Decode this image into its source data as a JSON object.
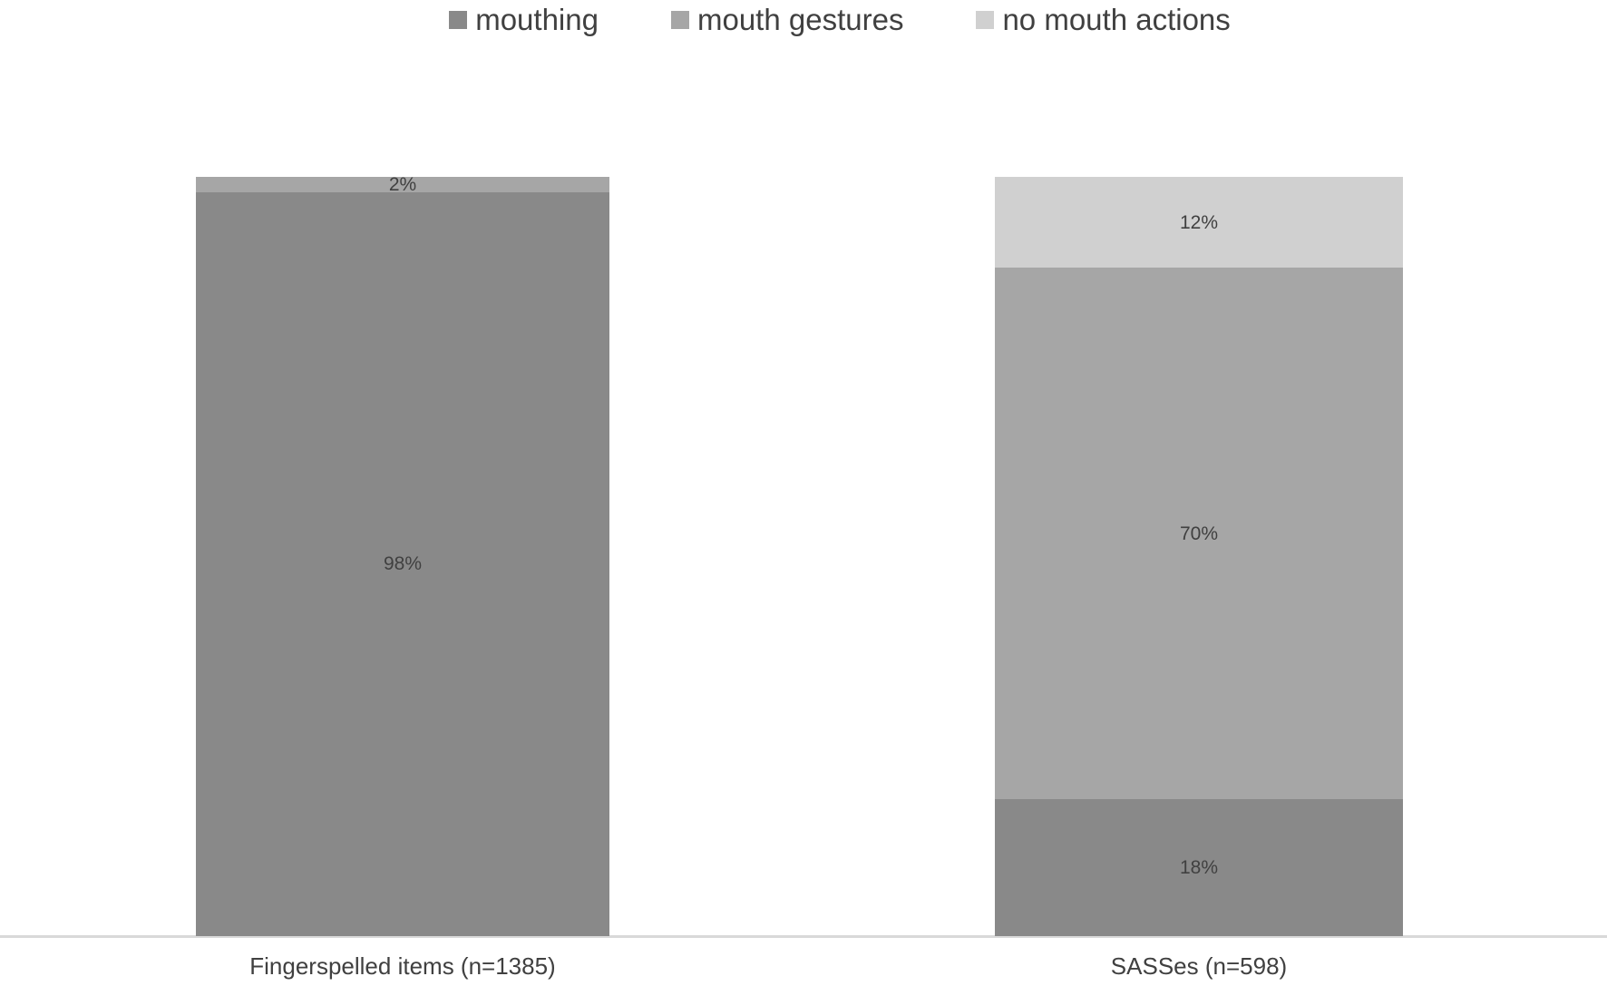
{
  "figure": {
    "background": "#ffffff",
    "axis_line_color": "#d9d9d9",
    "text_color": "#404040"
  },
  "legend": {
    "position": "top",
    "items": [
      {
        "label": "mouthing",
        "color": "#898989",
        "marker": "square"
      },
      {
        "label": "mouth gestures",
        "color": "#a6a6a6",
        "marker": "square"
      },
      {
        "label": "no mouth actions",
        "color": "#d0d0d0",
        "marker": "square"
      }
    ]
  },
  "chart_data": {
    "type": "bar",
    "variant": "100%-stacked-column",
    "categories": [
      "Fingerspelled items (n=1385)",
      "SASSes (n=598)"
    ],
    "series": [
      {
        "name": "mouthing",
        "color": "#898989",
        "values": [
          98,
          18
        ],
        "labels": [
          "98%",
          "18%"
        ]
      },
      {
        "name": "mouth gestures",
        "color": "#a6a6a6",
        "values": [
          2,
          70
        ],
        "labels": [
          "2%",
          "70%"
        ]
      },
      {
        "name": "no mouth actions",
        "color": "#d0d0d0",
        "values": [
          0,
          12
        ],
        "labels": [
          "",
          "12%"
        ]
      }
    ],
    "ylim": [
      0,
      100
    ],
    "grid": false,
    "legend_position": "top",
    "title": "",
    "xlabel": "",
    "ylabel": ""
  }
}
